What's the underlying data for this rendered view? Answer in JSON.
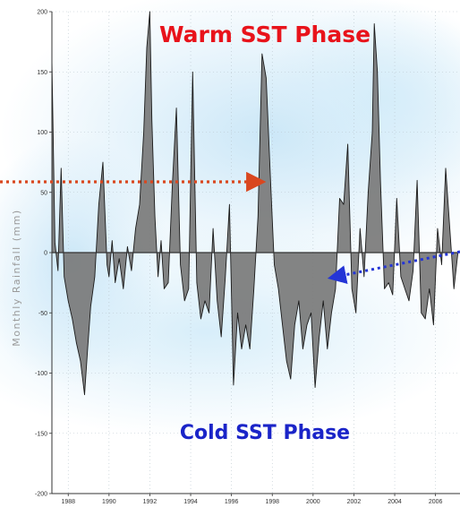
{
  "chart_data": {
    "type": "area",
    "title": "",
    "xlabel": "",
    "ylabel": "Monthly Rainfall (mm)",
    "xlim": [
      1987.2,
      2007.2
    ],
    "ylim": [
      -200,
      200
    ],
    "x_ticks": [
      "1988",
      "1990",
      "1992",
      "1994",
      "1996",
      "1998",
      "2000",
      "2002",
      "2004",
      "2006"
    ],
    "y_ticks": [
      "200",
      "150",
      "100",
      "50",
      "0",
      "-50",
      "-100",
      "-150",
      "-200"
    ],
    "grid": true,
    "fill_color": "#7a7a7a",
    "line_color": "#1a1a1a",
    "annotations": {
      "warm_label": "Warm SST Phase",
      "cold_label": "Cold SST Phase",
      "warm_arrow_color": "#d9471f",
      "cold_arrow_color": "#2435d6"
    },
    "series": [
      {
        "x": [
          1987.2,
          1987.35,
          1987.5,
          1987.65,
          1987.8,
          1988.0,
          1988.2,
          1988.4,
          1988.6,
          1988.8,
          1988.95,
          1989.1,
          1989.3,
          1989.5,
          1989.7,
          1989.9,
          1990.0,
          1990.15,
          1990.3,
          1990.5,
          1990.7,
          1990.9,
          1991.1,
          1991.3,
          1991.5,
          1991.7,
          1991.85,
          1992.0,
          1992.1,
          1992.25,
          1992.4,
          1992.55,
          1992.7,
          1992.9,
          1993.1,
          1993.3,
          1993.5,
          1993.7,
          1993.9,
          1994.1,
          1994.3,
          1994.5,
          1994.7,
          1994.9,
          1995.1,
          1995.3,
          1995.5,
          1995.7,
          1995.9,
          1996.1,
          1996.3,
          1996.5,
          1996.7,
          1996.9,
          1997.1,
          1997.3,
          1997.5,
          1997.7,
          1997.9,
          1998.1,
          1998.3,
          1998.5,
          1998.7,
          1998.9,
          1999.1,
          1999.3,
          1999.5,
          1999.7,
          1999.9,
          2000.1,
          2000.3,
          2000.5,
          2000.7,
          2000.9,
          2001.1,
          2001.3,
          2001.5,
          2001.7,
          2001.9,
          2002.1,
          2002.3,
          2002.5,
          2002.7,
          2002.9,
          2003.0,
          2003.15,
          2003.3,
          2003.5,
          2003.7,
          2003.9,
          2004.1,
          2004.3,
          2004.5,
          2004.7,
          2004.9,
          2005.1,
          2005.3,
          2005.5,
          2005.7,
          2005.9,
          2006.1,
          2006.3,
          2006.5,
          2006.7,
          2006.9,
          2007.1
        ],
        "values": [
          160,
          8,
          -15,
          70,
          -20,
          -40,
          -55,
          -75,
          -90,
          -118,
          -80,
          -45,
          -20,
          40,
          75,
          -10,
          -20,
          10,
          -25,
          -5,
          -30,
          5,
          -15,
          20,
          40,
          100,
          170,
          200,
          110,
          30,
          -20,
          10,
          -30,
          -25,
          55,
          120,
          -10,
          -40,
          -30,
          150,
          -25,
          -55,
          -40,
          -50,
          20,
          -40,
          -70,
          -20,
          40,
          -110,
          -50,
          -80,
          -60,
          -80,
          -30,
          30,
          165,
          145,
          65,
          -10,
          -30,
          -60,
          -90,
          -105,
          -60,
          -40,
          -80,
          -60,
          -50,
          -112,
          -70,
          -40,
          -80,
          -50,
          -30,
          45,
          40,
          90,
          -30,
          -50,
          20,
          -20,
          50,
          100,
          190,
          150,
          60,
          -30,
          -25,
          -35,
          45,
          -20,
          -30,
          -40,
          -15,
          60,
          -50,
          -55,
          -30,
          -60,
          20,
          -10,
          70,
          20,
          -30,
          0
        ]
      }
    ]
  }
}
